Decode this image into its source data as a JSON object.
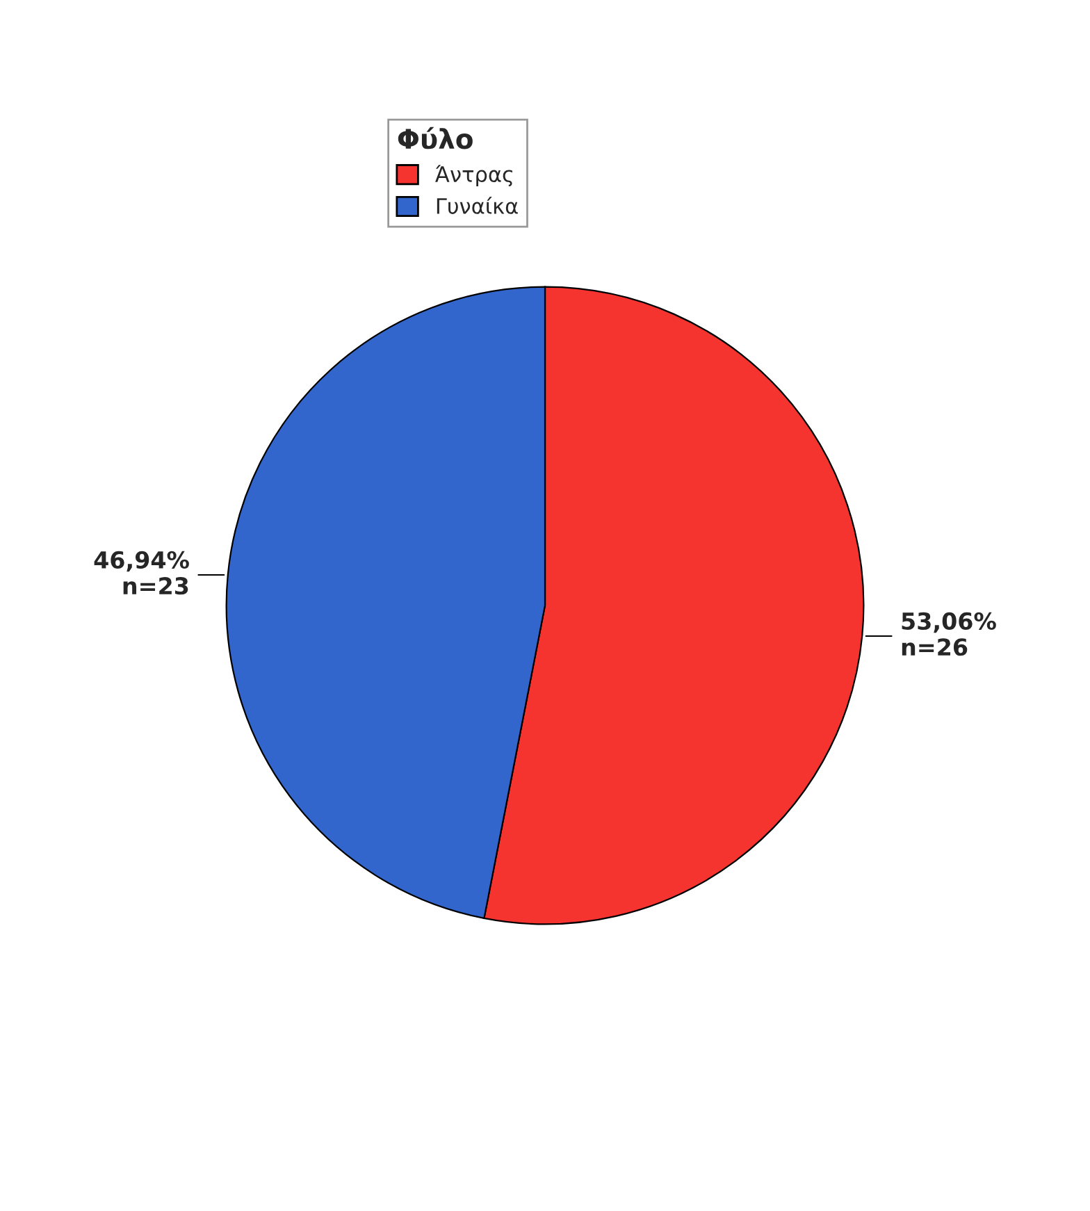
{
  "chart_data": {
    "type": "pie",
    "legend_title": "Φύλο",
    "legend": "top left",
    "categories": [
      "Άντρας",
      "Γυναίκα"
    ],
    "values": [
      26,
      23
    ],
    "value_labels": [
      "53,06%\nn=26",
      "46,94%\nn=23"
    ],
    "colors": [
      "#f5332f",
      "#3366cc"
    ]
  }
}
